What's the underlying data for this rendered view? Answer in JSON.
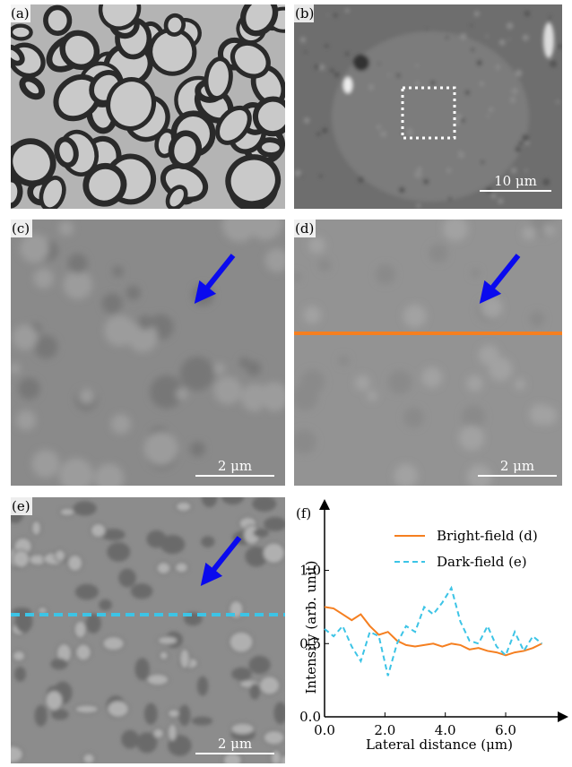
{
  "panels": [
    {
      "label": "(a)"
    },
    {
      "label": "(b)",
      "scale_bar": "10 μm"
    },
    {
      "label": "(c)",
      "scale_bar": "2 μm"
    },
    {
      "label": "(d)",
      "scale_bar": "2 μm"
    },
    {
      "label": "(e)",
      "scale_bar": "2 μm"
    },
    {
      "label": "(f)"
    }
  ],
  "chart_data": {
    "type": "line",
    "x_label": "Lateral distance (μm)",
    "y_label": "Intensity (arb. unit)",
    "x": [
      0,
      0.3,
      0.6,
      0.9,
      1.2,
      1.5,
      1.8,
      2.1,
      2.4,
      2.7,
      3.0,
      3.3,
      3.6,
      3.9,
      4.2,
      4.5,
      4.8,
      5.1,
      5.4,
      5.7,
      6.0,
      6.3,
      6.6,
      6.9,
      7.2
    ],
    "series": [
      {
        "name": "Bright-field (d)",
        "color": "#f57f20",
        "dash": false,
        "values": [
          0.75,
          0.74,
          0.7,
          0.66,
          0.7,
          0.62,
          0.56,
          0.58,
          0.52,
          0.49,
          0.48,
          0.49,
          0.5,
          0.48,
          0.5,
          0.49,
          0.46,
          0.47,
          0.45,
          0.44,
          0.42,
          0.44,
          0.45,
          0.47,
          0.5
        ]
      },
      {
        "name": "Dark-field (e)",
        "color": "#3cc4e6",
        "dash": true,
        "values": [
          0.6,
          0.55,
          0.62,
          0.48,
          0.38,
          0.58,
          0.55,
          0.28,
          0.5,
          0.62,
          0.58,
          0.75,
          0.7,
          0.78,
          0.88,
          0.65,
          0.52,
          0.5,
          0.62,
          0.48,
          0.42,
          0.58,
          0.45,
          0.55,
          0.5
        ]
      }
    ],
    "xlim": [
      0,
      7.9
    ],
    "ylim": [
      0,
      1.45
    ],
    "xticks": [
      {
        "value": 0,
        "label": "0.0"
      },
      {
        "value": 2,
        "label": "2.0"
      },
      {
        "value": 4,
        "label": "4.0"
      },
      {
        "value": 6,
        "label": "6.0"
      }
    ],
    "yticks": [
      {
        "value": 0,
        "label": "0.0"
      },
      {
        "value": 0.5,
        "label": "0.5"
      },
      {
        "value": 1,
        "label": "1.0"
      }
    ]
  }
}
